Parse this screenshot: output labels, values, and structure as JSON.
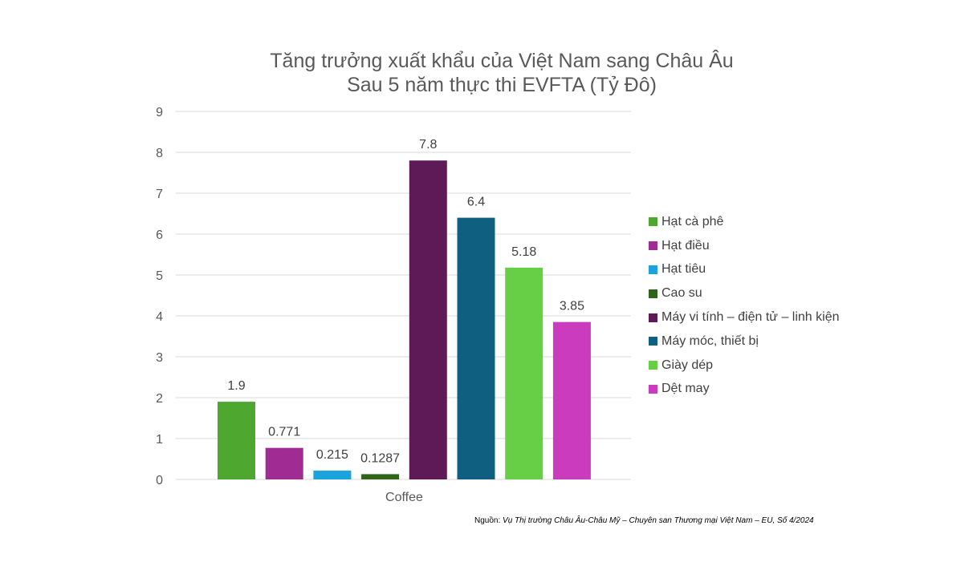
{
  "chart_data": {
    "type": "bar",
    "title": [
      "Tăng trưởng xuất khẩu của Việt Nam sang Châu Âu",
      "Sau 5 năm thực thi EVFTA (Tỷ Đô)"
    ],
    "categories": [
      "Coffee"
    ],
    "ylim": [
      0,
      9
    ],
    "yticks": [
      "0",
      "1",
      "2",
      "3",
      "4",
      "5",
      "6",
      "7",
      "8",
      "9"
    ],
    "grid": true,
    "legend_position": "right",
    "series": [
      {
        "name": "Hạt cà phê",
        "value": 1.9,
        "label": "1.9",
        "color": "#4ea72e"
      },
      {
        "name": "Hạt điều",
        "value": 0.771,
        "label": "0.771",
        "color": "#a02b93"
      },
      {
        "name": "Hạt tiêu",
        "value": 0.215,
        "label": "0.215",
        "color": "#1aa3dd"
      },
      {
        "name": "Cao su",
        "value": 0.1287,
        "label": "0.1287",
        "color": "#2e6518"
      },
      {
        "name": "Máy vi tính – điện tử – linh kiện",
        "value": 7.8,
        "label": "7.8",
        "color": "#5d1a56"
      },
      {
        "name": "Máy móc, thiết bị",
        "value": 6.4,
        "label": "6.4",
        "color": "#0f5f80"
      },
      {
        "name": "Giày dép",
        "value": 5.18,
        "label": "5.18",
        "color": "#67cf46"
      },
      {
        "name": "Dệt may",
        "value": 3.85,
        "label": "3.85",
        "color": "#ca3bbd"
      }
    ]
  },
  "source": {
    "label": "Nguồn:",
    "text": "Vụ Thị trường Châu Âu-Châu Mỹ – Chuyên san Thương mại Việt Nam – EU, Số 4/2024"
  }
}
